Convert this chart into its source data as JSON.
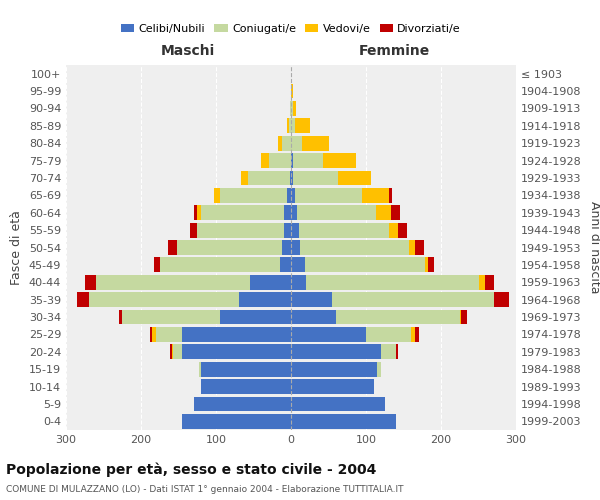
{
  "age_groups": [
    "0-4",
    "5-9",
    "10-14",
    "15-19",
    "20-24",
    "25-29",
    "30-34",
    "35-39",
    "40-44",
    "45-49",
    "50-54",
    "55-59",
    "60-64",
    "65-69",
    "70-74",
    "75-79",
    "80-84",
    "85-89",
    "90-94",
    "95-99",
    "100+"
  ],
  "birth_years": [
    "1999-2003",
    "1994-1998",
    "1989-1993",
    "1984-1988",
    "1979-1983",
    "1974-1978",
    "1969-1973",
    "1964-1968",
    "1959-1963",
    "1954-1958",
    "1949-1953",
    "1944-1948",
    "1939-1943",
    "1934-1938",
    "1929-1933",
    "1924-1928",
    "1919-1923",
    "1914-1918",
    "1909-1913",
    "1904-1908",
    "≤ 1903"
  ],
  "male": {
    "celibi": [
      145,
      130,
      120,
      120,
      145,
      145,
      95,
      70,
      55,
      15,
      12,
      10,
      10,
      5,
      2,
      0,
      0,
      0,
      0,
      0,
      0
    ],
    "coniugati": [
      0,
      0,
      0,
      3,
      12,
      35,
      130,
      200,
      205,
      160,
      140,
      115,
      110,
      90,
      55,
      30,
      12,
      3,
      2,
      0,
      0
    ],
    "vedovi": [
      0,
      0,
      0,
      0,
      2,
      5,
      0,
      0,
      0,
      0,
      0,
      0,
      5,
      8,
      10,
      10,
      5,
      2,
      0,
      0,
      0
    ],
    "divorziati": [
      0,
      0,
      0,
      0,
      2,
      3,
      5,
      15,
      15,
      8,
      12,
      10,
      5,
      0,
      0,
      0,
      0,
      0,
      0,
      0,
      0
    ]
  },
  "female": {
    "nubili": [
      140,
      125,
      110,
      115,
      120,
      100,
      60,
      55,
      20,
      18,
      12,
      10,
      8,
      5,
      2,
      2,
      0,
      0,
      0,
      0,
      0
    ],
    "coniugate": [
      0,
      0,
      0,
      5,
      20,
      60,
      165,
      215,
      230,
      160,
      145,
      120,
      105,
      90,
      60,
      40,
      15,
      5,
      2,
      0,
      0
    ],
    "vedove": [
      0,
      0,
      0,
      0,
      0,
      5,
      2,
      0,
      8,
      5,
      8,
      12,
      20,
      35,
      45,
      45,
      35,
      20,
      5,
      2,
      0
    ],
    "divorziate": [
      0,
      0,
      0,
      0,
      2,
      5,
      8,
      20,
      12,
      8,
      12,
      12,
      12,
      5,
      0,
      0,
      0,
      0,
      0,
      0,
      0
    ]
  },
  "color_celibi": "#4472c4",
  "color_coniugati": "#c5d9a0",
  "color_vedovi": "#ffc000",
  "color_divorziati": "#c00000",
  "title": "Popolazione per età, sesso e stato civile - 2004",
  "subtitle": "COMUNE DI MULAZZANO (LO) - Dati ISTAT 1° gennaio 2004 - Elaborazione TUTTITALIA.IT",
  "xlabel_left": "Maschi",
  "xlabel_right": "Femmine",
  "ylabel_left": "Fasce di età",
  "ylabel_right": "Anni di nascita",
  "xlim": 300,
  "legend_labels": [
    "Celibi/Nubili",
    "Coniugati/e",
    "Vedovi/e",
    "Divorziati/e"
  ],
  "bg_color": "#ffffff",
  "plot_bg_color": "#efefef"
}
